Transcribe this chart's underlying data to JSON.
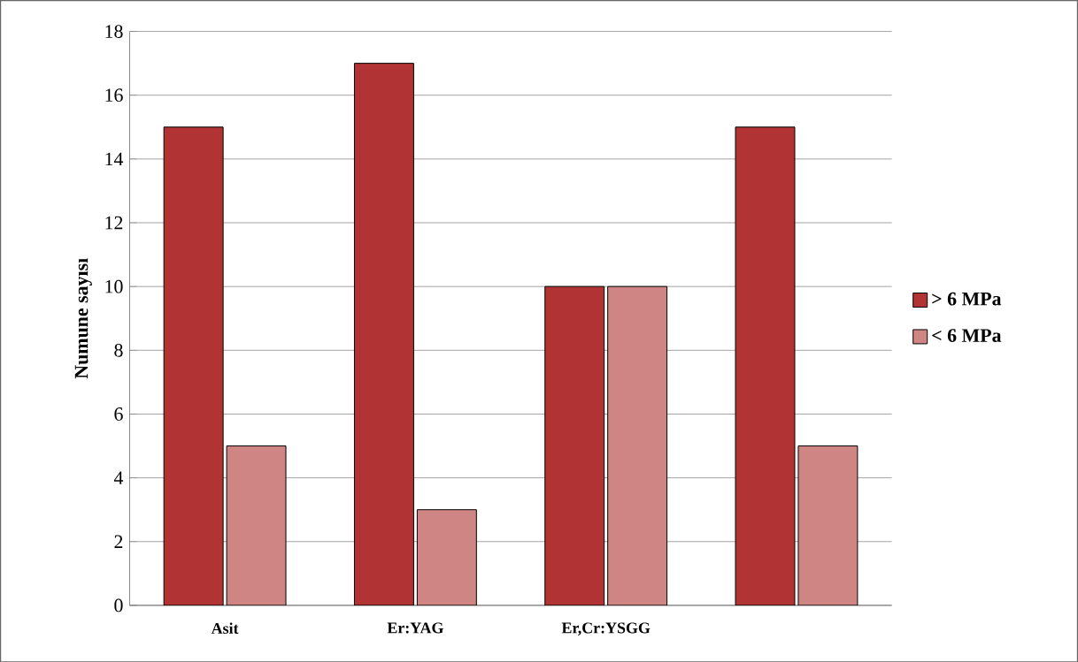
{
  "chart_data": {
    "type": "bar",
    "ylabel": "Numune sayısı",
    "categories": [
      "Asit",
      "Er:YAG",
      "Er,Cr:YSGG",
      null
    ],
    "series": [
      {
        "name": "> 6 MPa",
        "color": "#b23333",
        "values": [
          15,
          17,
          10,
          15
        ]
      },
      {
        "name": "< 6 MPa",
        "color": "#cf8583",
        "values": [
          5,
          3,
          10,
          5
        ]
      }
    ],
    "ylim": [
      0,
      18
    ],
    "yticks": [
      0,
      2,
      4,
      6,
      8,
      10,
      12,
      14,
      16,
      18
    ],
    "grid": "y",
    "legend": "right"
  }
}
